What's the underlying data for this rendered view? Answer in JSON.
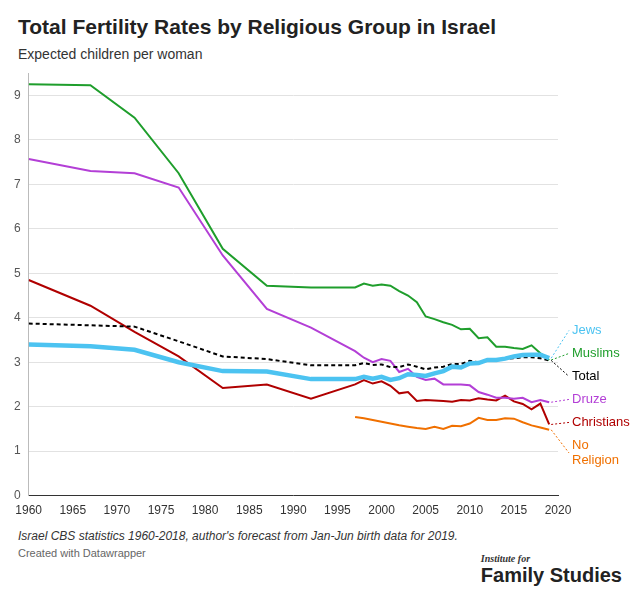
{
  "chart_data": {
    "type": "line",
    "title": "Total Fertility Rates by Religious Group in Israel",
    "subtitle": "Expected children per woman",
    "notes": [
      "Israel CBS statistics 1960-2018, author's forecast from Jan-Jun birth data for 2019.",
      "Created with Datawrapper"
    ],
    "logo": [
      "Institute for",
      "Family Studies"
    ],
    "x": [
      1960,
      1967,
      1972,
      1977,
      1982,
      1987,
      1992,
      1997,
      1998,
      1999,
      2000,
      2001,
      2002,
      2003,
      2004,
      2005,
      2006,
      2007,
      2008,
      2009,
      2010,
      2011,
      2012,
      2013,
      2014,
      2015,
      2016,
      2017,
      2018,
      2019
    ],
    "series": [
      {
        "name": "Jews",
        "color": "#4cc3f1",
        "line_style": "thick",
        "values": [
          3.4,
          3.36,
          3.28,
          3.0,
          2.8,
          2.79,
          2.62,
          2.62,
          2.67,
          2.63,
          2.67,
          2.6,
          2.64,
          2.73,
          2.71,
          2.69,
          2.75,
          2.8,
          2.9,
          2.88,
          2.97,
          2.98,
          3.05,
          3.05,
          3.08,
          3.13,
          3.16,
          3.17,
          3.17,
          3.09
        ]
      },
      {
        "name": "Muslims",
        "color": "#1f9e2c",
        "line_style": "solid",
        "values": [
          9.25,
          9.23,
          8.5,
          7.25,
          5.55,
          4.72,
          4.68,
          4.68,
          4.77,
          4.72,
          4.75,
          4.72,
          4.6,
          4.5,
          4.35,
          4.03,
          3.97,
          3.9,
          3.84,
          3.74,
          3.75,
          3.54,
          3.56,
          3.35,
          3.35,
          3.32,
          3.3,
          3.38,
          3.2,
          3.05
        ]
      },
      {
        "name": "Total",
        "color": "#000000",
        "line_style": "dashed",
        "values": [
          3.87,
          3.83,
          3.8,
          3.47,
          3.13,
          3.07,
          2.93,
          2.93,
          2.98,
          2.94,
          2.95,
          2.89,
          2.89,
          2.95,
          2.9,
          2.84,
          2.88,
          2.9,
          2.96,
          2.96,
          3.03,
          3.0,
          3.05,
          3.05,
          3.08,
          3.09,
          3.11,
          3.11,
          3.09,
          3.04
        ]
      },
      {
        "name": "Druze",
        "color": "#b33fd6",
        "line_style": "solid",
        "values": [
          7.57,
          7.3,
          7.25,
          6.93,
          5.4,
          4.2,
          3.78,
          3.25,
          3.1,
          3.0,
          3.07,
          3.03,
          2.78,
          2.85,
          2.67,
          2.6,
          2.63,
          2.5,
          2.5,
          2.5,
          2.48,
          2.33,
          2.27,
          2.2,
          2.2,
          2.18,
          2.2,
          2.1,
          2.15,
          2.1
        ]
      },
      {
        "name": "Christians",
        "color": "#b00000",
        "line_style": "solid",
        "values": [
          4.85,
          4.27,
          3.68,
          3.13,
          2.42,
          2.5,
          2.18,
          2.5,
          2.6,
          2.52,
          2.57,
          2.47,
          2.3,
          2.33,
          2.13,
          2.15,
          2.14,
          2.13,
          2.11,
          2.15,
          2.14,
          2.19,
          2.16,
          2.14,
          2.25,
          2.12,
          2.06,
          1.94,
          2.07,
          1.6
        ]
      },
      {
        "name": "No Religion",
        "color": "#f07000",
        "line_style": "solid",
        "values": [
          null,
          null,
          null,
          null,
          null,
          null,
          null,
          1.77,
          1.74,
          1.7,
          1.66,
          1.62,
          1.58,
          1.55,
          1.52,
          1.5,
          1.55,
          1.5,
          1.57,
          1.56,
          1.62,
          1.75,
          1.7,
          1.7,
          1.74,
          1.73,
          1.65,
          1.58,
          1.53,
          1.48
        ]
      }
    ],
    "xlim": [
      1960,
      2020
    ],
    "xticks": [
      1960,
      1965,
      1970,
      1975,
      1980,
      1985,
      1990,
      1995,
      2000,
      2005,
      2010,
      2015,
      2020
    ],
    "ylim": [
      0,
      9.5
    ],
    "yticks": [
      0,
      1,
      2,
      3,
      4,
      5,
      6,
      7,
      8,
      9
    ],
    "grid": true
  }
}
